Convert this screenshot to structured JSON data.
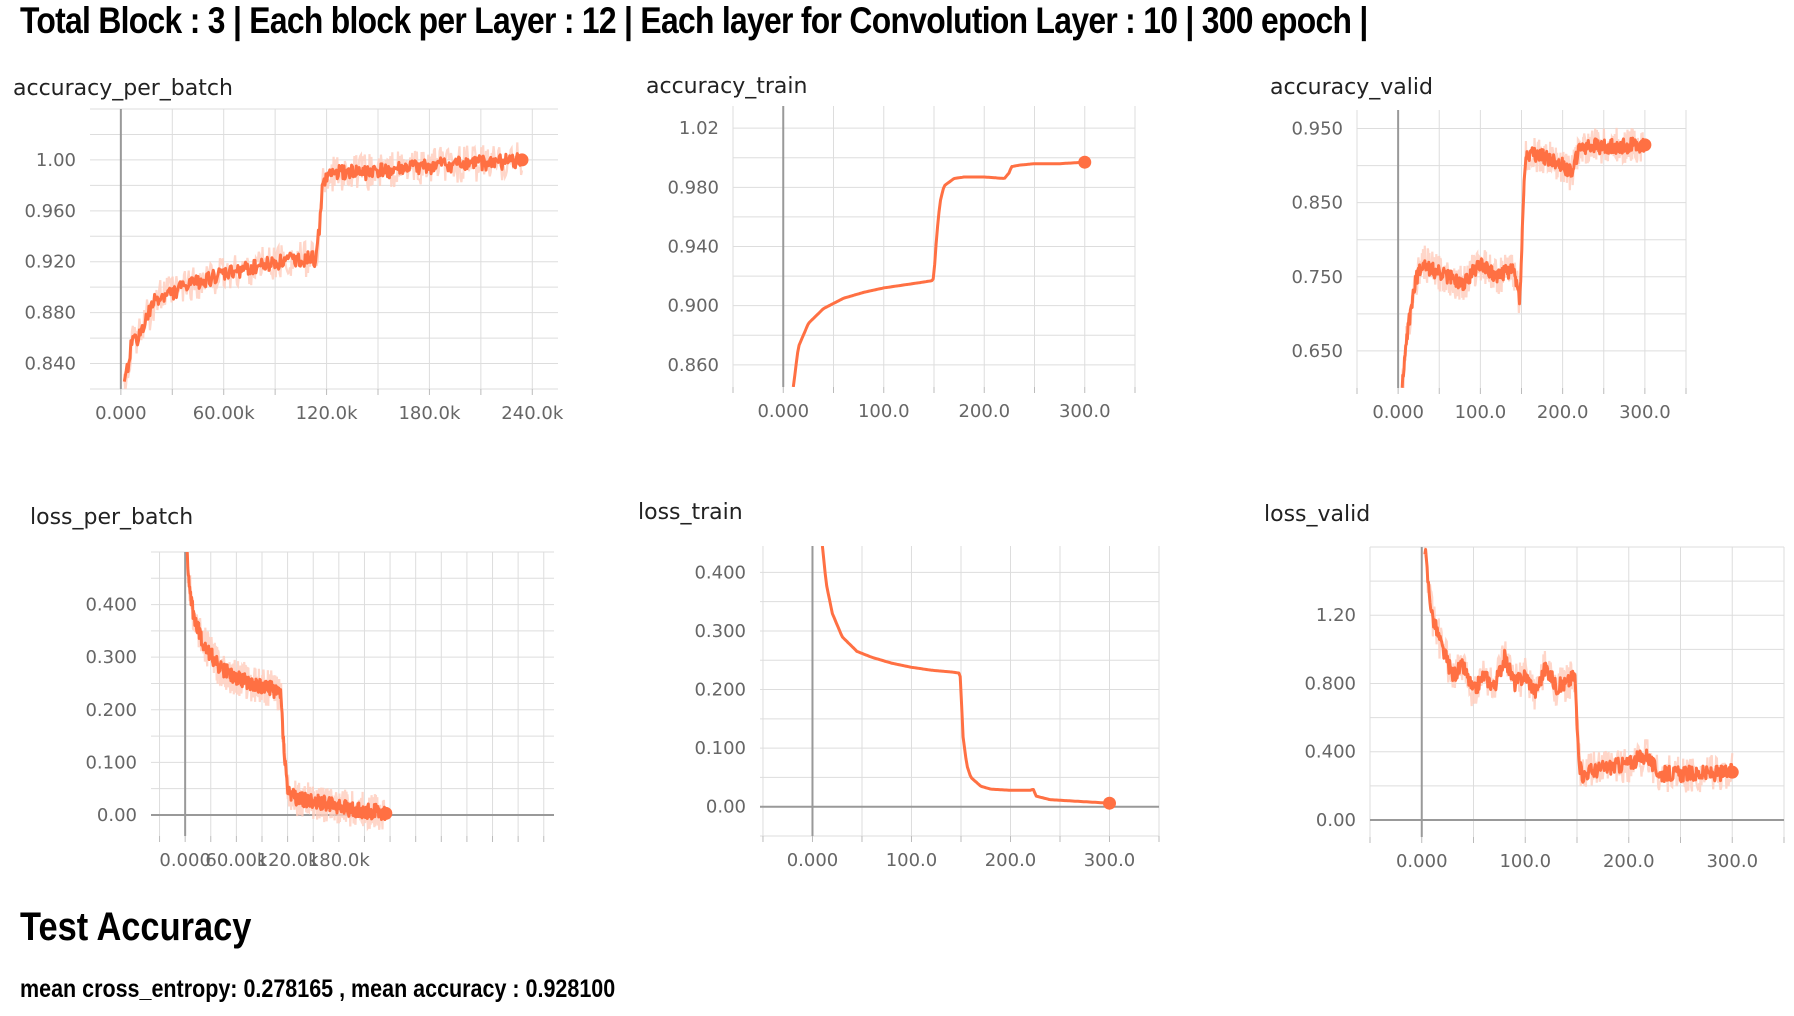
{
  "header": {
    "title": "Total Block : 3 | Each block per Layer : 12 | Each layer for  Convolution Layer : 10 | 300 epoch |"
  },
  "test": {
    "title": "Test Accuracy",
    "summary": "mean cross_entropy: 0.278165 , mean accuracy : 0.928100"
  },
  "style": {
    "line_color": "#ff7043",
    "raw_color": "#ffccbc",
    "grid_color": "#dddddd",
    "axis_color": "#999999"
  },
  "chart_data": [
    {
      "id": "accuracy_per_batch",
      "type": "line",
      "title": "accuracy_per_batch",
      "xlim": [
        -18000,
        255000
      ],
      "ylim": [
        0.82,
        1.04
      ],
      "xticks": [
        0,
        60000,
        120000,
        180000,
        240000
      ],
      "xtick_labels": [
        "0.000",
        "60.00k",
        "120.0k",
        "180.0k",
        "240.0k"
      ],
      "yticks": [
        0.84,
        0.88,
        0.92,
        0.96,
        1.0
      ],
      "ytick_labels": [
        "0.840",
        "0.880",
        "0.920",
        "0.960",
        "1.00"
      ],
      "series": [
        {
          "smoothed": true,
          "noisy": true,
          "end_marker": true,
          "x": [
            2000,
            6000,
            10000,
            20000,
            40000,
            60000,
            80000,
            100000,
            114000,
            116000,
            118000,
            125000,
            140000,
            160000,
            180000,
            200000,
            220000,
            234000
          ],
          "y": [
            0.82,
            0.855,
            0.86,
            0.89,
            0.902,
            0.91,
            0.917,
            0.922,
            0.922,
            0.95,
            0.985,
            0.99,
            0.99,
            0.992,
            0.995,
            0.997,
            0.998,
            1.0
          ]
        }
      ]
    },
    {
      "id": "accuracy_train",
      "type": "line",
      "title": "accuracy_train",
      "xlim": [
        -50,
        350
      ],
      "ylim": [
        0.845,
        1.035
      ],
      "xticks": [
        0,
        100,
        200,
        300
      ],
      "xtick_labels": [
        "0.000",
        "100.0",
        "200.0",
        "300.0"
      ],
      "yticks": [
        0.86,
        0.9,
        0.94,
        0.98,
        1.02
      ],
      "ytick_labels": [
        "0.860",
        "0.900",
        "0.940",
        "0.980",
        "1.02"
      ],
      "series": [
        {
          "smoothed": true,
          "noisy": false,
          "end_marker": true,
          "x": [
            10,
            15,
            25,
            40,
            60,
            80,
            100,
            120,
            140,
            149,
            150,
            153,
            156,
            160,
            170,
            180,
            200,
            220,
            225,
            227,
            235,
            250,
            275,
            300
          ],
          "y": [
            0.845,
            0.872,
            0.888,
            0.898,
            0.905,
            0.909,
            0.912,
            0.914,
            0.916,
            0.917,
            0.922,
            0.95,
            0.97,
            0.981,
            0.986,
            0.987,
            0.987,
            0.986,
            0.99,
            0.994,
            0.995,
            0.996,
            0.996,
            0.997
          ]
        }
      ]
    },
    {
      "id": "accuracy_valid",
      "type": "line",
      "title": "accuracy_valid",
      "xlim": [
        -50,
        350
      ],
      "ylim": [
        0.6,
        0.975
      ],
      "xticks": [
        0,
        100,
        200,
        300
      ],
      "xtick_labels": [
        "0.000",
        "100.0",
        "200.0",
        "300.0"
      ],
      "yticks": [
        0.65,
        0.75,
        0.85,
        0.95
      ],
      "ytick_labels": [
        "0.650",
        "0.750",
        "0.850",
        "0.950"
      ],
      "series": [
        {
          "smoothed": true,
          "noisy": true,
          "end_marker": true,
          "x": [
            5,
            8,
            12,
            20,
            30,
            40,
            60,
            80,
            100,
            120,
            140,
            148,
            150,
            153,
            155,
            160,
            175,
            190,
            200,
            210,
            215,
            222,
            240,
            260,
            280,
            300
          ],
          "y": [
            0.6,
            0.64,
            0.68,
            0.74,
            0.77,
            0.76,
            0.75,
            0.74,
            0.77,
            0.75,
            0.76,
            0.72,
            0.78,
            0.87,
            0.91,
            0.915,
            0.912,
            0.905,
            0.9,
            0.89,
            0.905,
            0.925,
            0.926,
            0.926,
            0.927,
            0.928
          ]
        }
      ]
    },
    {
      "id": "loss_per_batch",
      "type": "line",
      "title": "loss_per_batch",
      "xlim": [
        -40000,
        432000
      ],
      "ylim": [
        -0.04,
        0.5
      ],
      "xticks": [
        0,
        60000,
        120000,
        180000
      ],
      "xtick_labels": [
        "0.000",
        "60.00k",
        "120.0k",
        "180.0k"
      ],
      "yticks": [
        0.0,
        0.1,
        0.2,
        0.3,
        0.4
      ],
      "ytick_labels": [
        "0.00",
        "0.100",
        "0.200",
        "0.300",
        "0.400"
      ],
      "series": [
        {
          "smoothed": true,
          "noisy": true,
          "end_marker": true,
          "x": [
            2000,
            5000,
            10000,
            20000,
            40000,
            60000,
            80000,
            100000,
            112000,
            116000,
            120000,
            130000,
            150000,
            170000,
            190000,
            210000,
            230000,
            235000
          ],
          "y": [
            0.5,
            0.43,
            0.38,
            0.33,
            0.28,
            0.26,
            0.25,
            0.24,
            0.23,
            0.12,
            0.045,
            0.03,
            0.025,
            0.02,
            0.012,
            0.008,
            0.005,
            0.003
          ]
        }
      ]
    },
    {
      "id": "loss_train",
      "type": "line",
      "title": "loss_train",
      "xlim": [
        -53,
        350
      ],
      "ylim": [
        -0.05,
        0.445
      ],
      "xticks": [
        0,
        100,
        200,
        300
      ],
      "xtick_labels": [
        "0.000",
        "100.0",
        "200.0",
        "300.0"
      ],
      "yticks": [
        0.0,
        0.1,
        0.2,
        0.3,
        0.4
      ],
      "ytick_labels": [
        "0.00",
        "0.100",
        "0.200",
        "0.300",
        "0.400"
      ],
      "series": [
        {
          "smoothed": true,
          "noisy": false,
          "end_marker": true,
          "x": [
            10,
            14,
            20,
            30,
            45,
            60,
            80,
            100,
            120,
            140,
            149,
            150,
            152,
            156,
            160,
            170,
            180,
            200,
            220,
            223,
            226,
            240,
            260,
            280,
            300
          ],
          "y": [
            0.445,
            0.38,
            0.33,
            0.29,
            0.265,
            0.255,
            0.245,
            0.238,
            0.233,
            0.23,
            0.228,
            0.2,
            0.12,
            0.07,
            0.05,
            0.035,
            0.03,
            0.028,
            0.028,
            0.03,
            0.018,
            0.012,
            0.01,
            0.008,
            0.006
          ]
        }
      ]
    },
    {
      "id": "loss_valid",
      "type": "line",
      "title": "loss_valid",
      "xlim": [
        -50,
        350
      ],
      "ylim": [
        -0.1,
        1.6
      ],
      "xticks": [
        0,
        100,
        200,
        300
      ],
      "xtick_labels": [
        "0.000",
        "100.0",
        "200.0",
        "300.0"
      ],
      "yticks": [
        0.0,
        0.4,
        0.8,
        1.2
      ],
      "ytick_labels": [
        "0.00",
        "0.400",
        "0.800",
        "1.20"
      ],
      "series": [
        {
          "smoothed": true,
          "noisy": true,
          "end_marker": true,
          "x": [
            3,
            6,
            10,
            20,
            30,
            40,
            50,
            60,
            70,
            80,
            90,
            100,
            110,
            120,
            130,
            140,
            148,
            150,
            153,
            156,
            160,
            180,
            200,
            210,
            218,
            222,
            230,
            260,
            280,
            300
          ],
          "y": [
            1.6,
            1.4,
            1.2,
            1.0,
            0.85,
            0.9,
            0.75,
            0.85,
            0.78,
            0.95,
            0.8,
            0.85,
            0.75,
            0.9,
            0.78,
            0.8,
            0.85,
            0.55,
            0.3,
            0.26,
            0.28,
            0.31,
            0.33,
            0.36,
            0.38,
            0.33,
            0.27,
            0.27,
            0.27,
            0.28
          ]
        }
      ]
    }
  ]
}
